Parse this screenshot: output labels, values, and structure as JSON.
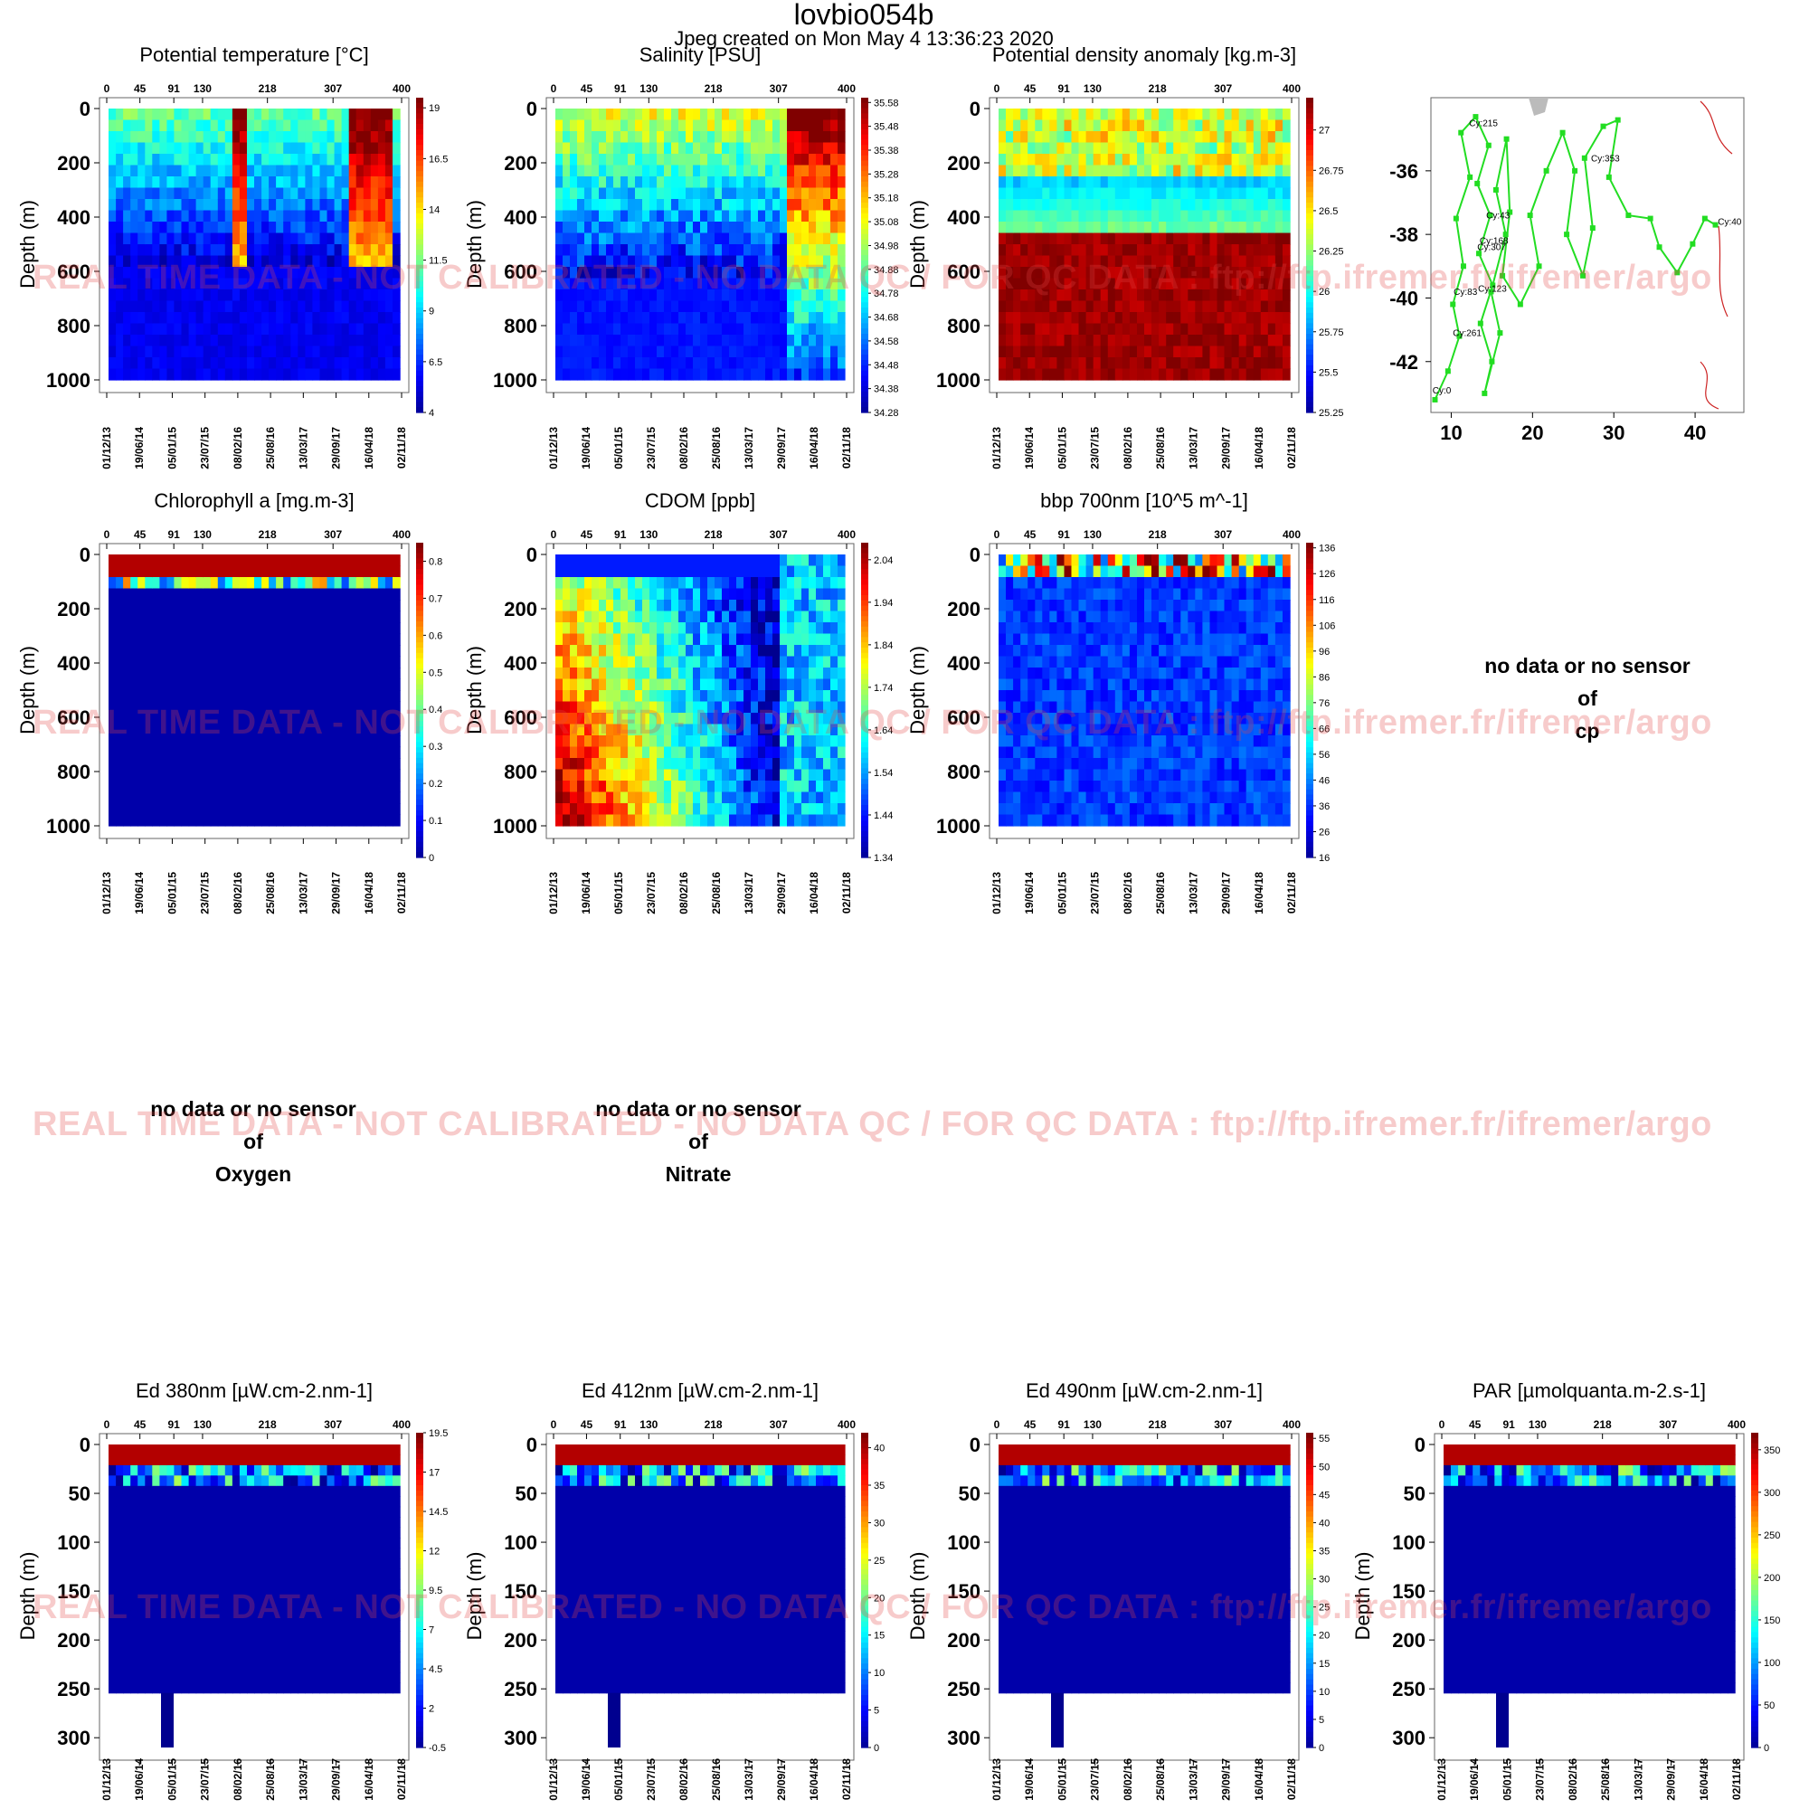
{
  "header": {
    "title": "lovbio054b",
    "subtitle": "Jpeg created on  Mon May  4 13:36:23 2020"
  },
  "watermark": "REAL TIME DATA - NOT CALIBRATED - NO DATA QC   /  FOR QC DATA : ftp://ftp.ifremer.fr/ifremer/argo",
  "nodata": [
    {
      "l1": "no data or no sensor",
      "l2": "of",
      "l3": "cp"
    },
    {
      "l1": "no data or no sensor",
      "l2": "of",
      "l3": "Oxygen"
    },
    {
      "l1": "no data or no sensor",
      "l2": "of",
      "l3": "Nitrate"
    }
  ],
  "colors": {
    "jet": [
      "#00008f",
      "#0000ff",
      "#0080ff",
      "#00ffff",
      "#80ff80",
      "#ffff00",
      "#ff8000",
      "#ff0000",
      "#800000"
    ],
    "track": "#22dd22",
    "coast": "#cc2222"
  },
  "chart_data": [
    {
      "type": "heatmap",
      "title": "Potential temperature [°C]",
      "ylabel": "Depth (m)",
      "ylim": [
        1000,
        0
      ],
      "cycle_ticks": [
        "0",
        "45",
        "91",
        "130",
        "218",
        "307",
        "400"
      ],
      "date_ticks": [
        "01/12/13",
        "19/06/14",
        "05/01/15",
        "23/07/15",
        "08/02/16",
        "25/08/16",
        "13/03/17",
        "29/09/17",
        "16/04/18",
        "02/11/18"
      ],
      "depth_ticks": [
        "0",
        "200",
        "400",
        "600",
        "800",
        "1000"
      ],
      "colorbar_ticks": [
        "19",
        "16.5",
        "14",
        "11.5",
        "9",
        "6.5",
        "4"
      ],
      "crange": [
        4,
        19.5
      ]
    },
    {
      "type": "heatmap",
      "title": "Salinity [PSU]",
      "ylabel": "Depth (m)",
      "ylim": [
        1000,
        0
      ],
      "cycle_ticks": [
        "0",
        "45",
        "91",
        "130",
        "218",
        "307",
        "400"
      ],
      "date_ticks": [
        "01/12/13",
        "19/06/14",
        "05/01/15",
        "23/07/15",
        "08/02/16",
        "25/08/16",
        "13/03/17",
        "29/09/17",
        "16/04/18",
        "02/11/18"
      ],
      "depth_ticks": [
        "0",
        "200",
        "400",
        "600",
        "800",
        "1000"
      ],
      "colorbar_ticks": [
        "35.58",
        "35.48",
        "35.38",
        "35.28",
        "35.18",
        "35.08",
        "34.98",
        "34.88",
        "34.78",
        "34.68",
        "34.58",
        "34.48",
        "34.38",
        "34.28"
      ],
      "crange": [
        34.28,
        35.6
      ]
    },
    {
      "type": "heatmap",
      "title": "Potential density anomaly [kg.m-3]",
      "ylabel": "Depth (m)",
      "ylim": [
        1000,
        0
      ],
      "cycle_ticks": [
        "0",
        "45",
        "91",
        "130",
        "218",
        "307",
        "400"
      ],
      "date_ticks": [
        "01/12/13",
        "19/06/14",
        "05/01/15",
        "23/07/15",
        "08/02/16",
        "25/08/16",
        "13/03/17",
        "29/09/17",
        "16/04/18",
        "02/11/18"
      ],
      "depth_ticks": [
        "0",
        "200",
        "400",
        "600",
        "800",
        "1000"
      ],
      "colorbar_ticks": [
        "27",
        "26.75",
        "26.5",
        "26.25",
        "26",
        "25.75",
        "25.5",
        "25.25"
      ],
      "crange": [
        25.25,
        27.2
      ]
    },
    {
      "type": "scatter",
      "title": "",
      "x_ticks": [
        "10",
        "20",
        "30",
        "40"
      ],
      "y_ticks": [
        "-36",
        "-38",
        "-40",
        "-42"
      ],
      "xlim": [
        7.5,
        46
      ],
      "ylim": [
        -43.6,
        -33.7
      ],
      "labels": [
        {
          "text": "Cy:215",
          "x": 12.2,
          "y": -34.6
        },
        {
          "text": "Cy:353",
          "x": 27.2,
          "y": -35.7
        },
        {
          "text": "Cy:43",
          "x": 14.3,
          "y": -37.5
        },
        {
          "text": "Cy:40",
          "x": 42.8,
          "y": -37.7
        },
        {
          "text": "Cy:168",
          "x": 13.5,
          "y": -38.3
        },
        {
          "text": "Cy:307",
          "x": 13.2,
          "y": -38.5
        },
        {
          "text": "Cy:83",
          "x": 10.3,
          "y": -39.9
        },
        {
          "text": "Cy:123",
          "x": 13.3,
          "y": -39.8
        },
        {
          "text": "Cy:261",
          "x": 10.2,
          "y": -41.2
        },
        {
          "text": "Cy:0",
          "x": 7.7,
          "y": -43.0
        }
      ],
      "track": [
        [
          8.0,
          -43.2
        ],
        [
          9.6,
          -42.3
        ],
        [
          11.0,
          -41.2
        ],
        [
          10.2,
          -40.2
        ],
        [
          11.5,
          -39.0
        ],
        [
          10.6,
          -37.5
        ],
        [
          12.3,
          -36.2
        ],
        [
          11.2,
          -34.8
        ],
        [
          13.0,
          -34.3
        ],
        [
          14.6,
          -35.2
        ],
        [
          13.2,
          -36.4
        ],
        [
          14.8,
          -37.4
        ],
        [
          13.4,
          -38.6
        ],
        [
          15.1,
          -39.6
        ],
        [
          13.6,
          -40.8
        ],
        [
          15.0,
          -42.0
        ],
        [
          14.1,
          -43.0
        ],
        [
          16.0,
          -41.1
        ],
        [
          14.9,
          -39.8
        ],
        [
          16.7,
          -38.0
        ],
        [
          15.5,
          -36.6
        ],
        [
          16.8,
          -35.0
        ],
        [
          17.2,
          -37.3
        ],
        [
          16.3,
          -39.3
        ],
        [
          18.5,
          -40.2
        ],
        [
          20.8,
          -39.0
        ],
        [
          19.7,
          -37.4
        ],
        [
          21.7,
          -36.0
        ],
        [
          23.7,
          -34.8
        ],
        [
          25.2,
          -36.0
        ],
        [
          24.2,
          -38.0
        ],
        [
          26.2,
          -39.3
        ],
        [
          27.4,
          -37.8
        ],
        [
          26.4,
          -35.6
        ],
        [
          28.7,
          -34.6
        ],
        [
          30.5,
          -34.4
        ],
        [
          29.4,
          -36.2
        ],
        [
          31.8,
          -37.4
        ],
        [
          34.5,
          -37.5
        ],
        [
          35.6,
          -38.4
        ],
        [
          37.8,
          -39.2
        ],
        [
          39.7,
          -38.3
        ],
        [
          41.2,
          -37.5
        ],
        [
          42.5,
          -37.7
        ]
      ]
    },
    {
      "type": "heatmap",
      "title": "Chlorophyll a [mg.m-3]",
      "ylabel": "Depth (m)",
      "ylim": [
        1000,
        0
      ],
      "cycle_ticks": [
        "0",
        "45",
        "91",
        "130",
        "218",
        "307",
        "400"
      ],
      "date_ticks": [
        "01/12/13",
        "19/06/14",
        "05/01/15",
        "23/07/15",
        "08/02/16",
        "25/08/16",
        "13/03/17",
        "29/09/17",
        "16/04/18",
        "02/11/18"
      ],
      "depth_ticks": [
        "0",
        "200",
        "400",
        "600",
        "800",
        "1000"
      ],
      "colorbar_ticks": [
        "0.8",
        "0.7",
        "0.6",
        "0.5",
        "0.4",
        "0.3",
        "0.2",
        "0.1",
        "0"
      ],
      "crange": [
        0,
        0.85
      ]
    },
    {
      "type": "heatmap",
      "title": "CDOM  [ppb]",
      "ylabel": "Depth (m)",
      "ylim": [
        1000,
        0
      ],
      "cycle_ticks": [
        "0",
        "45",
        "91",
        "130",
        "218",
        "307",
        "400"
      ],
      "date_ticks": [
        "01/12/13",
        "19/06/14",
        "05/01/15",
        "23/07/15",
        "08/02/16",
        "25/08/16",
        "13/03/17",
        "29/09/17",
        "16/04/18",
        "02/11/18"
      ],
      "depth_ticks": [
        "0",
        "200",
        "400",
        "600",
        "800",
        "1000"
      ],
      "colorbar_ticks": [
        "2.04",
        "1.94",
        "1.84",
        "1.74",
        "1.64",
        "1.54",
        "1.44",
        "1.34"
      ],
      "crange": [
        1.34,
        2.08
      ]
    },
    {
      "type": "heatmap",
      "title": "bbp 700nm [10^5 m^-1]",
      "ylabel": "Depth (m)",
      "ylim": [
        1000,
        0
      ],
      "cycle_ticks": [
        "0",
        "45",
        "91",
        "130",
        "218",
        "307",
        "400"
      ],
      "date_ticks": [
        "01/12/13",
        "19/06/14",
        "05/01/15",
        "23/07/15",
        "08/02/16",
        "25/08/16",
        "13/03/17",
        "29/09/17",
        "16/04/18",
        "02/11/18"
      ],
      "depth_ticks": [
        "0",
        "200",
        "400",
        "600",
        "800",
        "1000"
      ],
      "colorbar_ticks": [
        "136",
        "126",
        "116",
        "106",
        "96",
        "86",
        "76",
        "66",
        "56",
        "46",
        "36",
        "26",
        "16"
      ],
      "crange": [
        16,
        138
      ]
    },
    {
      "type": "heatmap",
      "title": "Ed 380nm [µW.cm-2.nm-1]",
      "ylabel": "Depth (m)",
      "ylim": [
        310,
        0
      ],
      "cycle_ticks": [
        "0",
        "45",
        "91",
        "130",
        "218",
        "307",
        "400"
      ],
      "date_ticks": [
        "01/12/13",
        "19/06/14",
        "05/01/15",
        "23/07/15",
        "08/02/16",
        "25/08/16",
        "13/03/17",
        "29/09/17",
        "16/04/18",
        "02/11/18"
      ],
      "depth_ticks": [
        "0",
        "50",
        "100",
        "150",
        "200",
        "250",
        "300"
      ],
      "colorbar_ticks": [
        "19.5",
        "17",
        "14.5",
        "12",
        "9.5",
        "7",
        "4.5",
        "2",
        "-0.5"
      ],
      "crange": [
        -0.5,
        19.5
      ]
    },
    {
      "type": "heatmap",
      "title": "Ed 412nm [µW.cm-2.nm-1]",
      "ylabel": "Depth (m)",
      "ylim": [
        310,
        0
      ],
      "cycle_ticks": [
        "0",
        "45",
        "91",
        "130",
        "218",
        "307",
        "400"
      ],
      "date_ticks": [
        "01/12/13",
        "19/06/14",
        "05/01/15",
        "23/07/15",
        "08/02/16",
        "25/08/16",
        "13/03/17",
        "29/09/17",
        "16/04/18",
        "02/11/18"
      ],
      "depth_ticks": [
        "0",
        "50",
        "100",
        "150",
        "200",
        "250",
        "300"
      ],
      "colorbar_ticks": [
        "40",
        "35",
        "30",
        "25",
        "20",
        "15",
        "10",
        "5",
        "0"
      ],
      "crange": [
        0,
        42
      ]
    },
    {
      "type": "heatmap",
      "title": "Ed 490nm [µW.cm-2.nm-1]",
      "ylabel": "Depth (m)",
      "ylim": [
        310,
        0
      ],
      "cycle_ticks": [
        "0",
        "45",
        "91",
        "130",
        "218",
        "307",
        "400"
      ],
      "date_ticks": [
        "01/12/13",
        "19/06/14",
        "05/01/15",
        "23/07/15",
        "08/02/16",
        "25/08/16",
        "13/03/17",
        "29/09/17",
        "16/04/18",
        "02/11/18"
      ],
      "depth_ticks": [
        "0",
        "50",
        "100",
        "150",
        "200",
        "250",
        "300"
      ],
      "colorbar_ticks": [
        "55",
        "50",
        "45",
        "40",
        "35",
        "30",
        "25",
        "20",
        "15",
        "10",
        "5",
        "0"
      ],
      "crange": [
        0,
        56
      ]
    },
    {
      "type": "heatmap",
      "title": "PAR [µmolquanta.m-2.s-1]",
      "ylabel": "Depth (m)",
      "ylim": [
        310,
        0
      ],
      "cycle_ticks": [
        "0",
        "45",
        "91",
        "130",
        "218",
        "307",
        "400"
      ],
      "date_ticks": [
        "01/12/13",
        "19/06/14",
        "05/01/15",
        "23/07/15",
        "08/02/16",
        "25/08/16",
        "13/03/17",
        "29/09/17",
        "16/04/18",
        "02/11/18"
      ],
      "depth_ticks": [
        "0",
        "50",
        "100",
        "150",
        "200",
        "250",
        "300"
      ],
      "colorbar_ticks": [
        "350",
        "300",
        "250",
        "200",
        "150",
        "100",
        "50",
        "0"
      ],
      "crange": [
        0,
        370
      ]
    }
  ]
}
